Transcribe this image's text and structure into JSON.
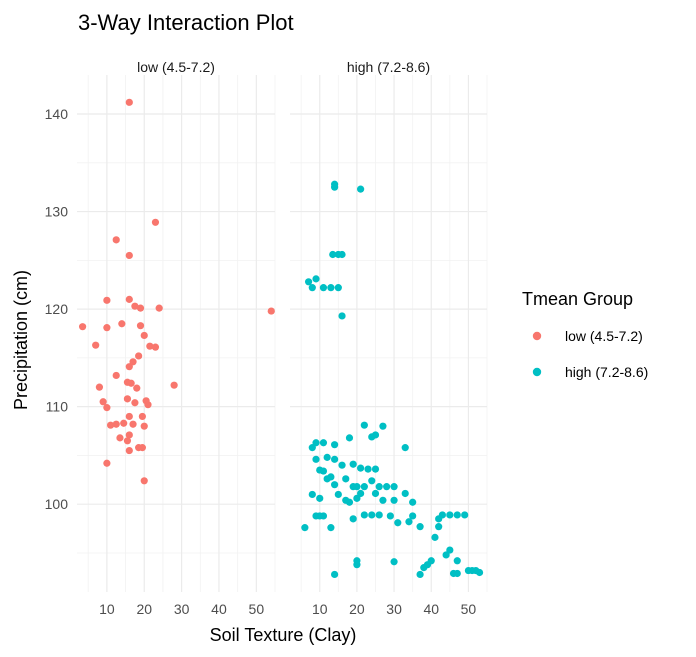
{
  "chart_data": {
    "type": "scatter",
    "title": "3-Way Interaction Plot",
    "xlabel": "Soil Texture (Clay)",
    "ylabel": "Precipitation (cm)",
    "xlim": [
      2,
      55
    ],
    "ylim": [
      91,
      144
    ],
    "x_ticks": [
      10,
      20,
      30,
      40,
      50
    ],
    "y_ticks": [
      100,
      110,
      120,
      130,
      140
    ],
    "grid": true,
    "legend": {
      "title": "Tmean Group",
      "placement": "right",
      "entries": [
        {
          "label": "low (4.5-7.2)",
          "color": "#F8766D"
        },
        {
          "label": "high (7.2-8.6)",
          "color": "#00BFC4"
        }
      ]
    },
    "panels": [
      {
        "strip": "low (4.5-7.2)",
        "color": "#F8766D",
        "points": [
          [
            16,
            141.2
          ],
          [
            23,
            128.9
          ],
          [
            12.5,
            127.1
          ],
          [
            16,
            125.5
          ],
          [
            16,
            121
          ],
          [
            10,
            120.9
          ],
          [
            17.5,
            120.3
          ],
          [
            19,
            120.1
          ],
          [
            24,
            120.1
          ],
          [
            3.5,
            118.2
          ],
          [
            10,
            118.1
          ],
          [
            14,
            118.5
          ],
          [
            19,
            118.3
          ],
          [
            20,
            117.3
          ],
          [
            21.5,
            116.2
          ],
          [
            23,
            116.1
          ],
          [
            7,
            116.3
          ],
          [
            18.5,
            115.2
          ],
          [
            17,
            114.6
          ],
          [
            16,
            114.1
          ],
          [
            12.5,
            113.2
          ],
          [
            15.5,
            112.5
          ],
          [
            16.5,
            112.4
          ],
          [
            18,
            111.9
          ],
          [
            20.5,
            110.6
          ],
          [
            10,
            109.9
          ],
          [
            15.5,
            110.8
          ],
          [
            17.5,
            110.4
          ],
          [
            21,
            110.2
          ],
          [
            19.5,
            109
          ],
          [
            16,
            109
          ],
          [
            8,
            112
          ],
          [
            9,
            110.5
          ],
          [
            11,
            108.1
          ],
          [
            12.5,
            108.2
          ],
          [
            14.5,
            108.3
          ],
          [
            17,
            108.2
          ],
          [
            20,
            108
          ],
          [
            16,
            107.1
          ],
          [
            13.5,
            106.8
          ],
          [
            15.5,
            106.5
          ],
          [
            18.5,
            105.8
          ],
          [
            19.5,
            105.8
          ],
          [
            16,
            105.5
          ],
          [
            10,
            104.2
          ],
          [
            28,
            112.2
          ],
          [
            20,
            102.4
          ],
          [
            54,
            119.8
          ]
        ]
      },
      {
        "strip": "high (7.2-8.6)",
        "color": "#00BFC4",
        "points": [
          [
            14,
            132.8
          ],
          [
            14,
            132.5
          ],
          [
            21,
            132.3
          ],
          [
            13.5,
            125.6
          ],
          [
            15,
            125.6
          ],
          [
            16,
            125.6
          ],
          [
            7,
            122.8
          ],
          [
            9,
            123.1
          ],
          [
            8,
            122.2
          ],
          [
            11,
            122.2
          ],
          [
            13,
            122.2
          ],
          [
            15,
            122.2
          ],
          [
            16,
            119.3
          ],
          [
            9,
            106.3
          ],
          [
            8,
            105.8
          ],
          [
            11,
            106.3
          ],
          [
            14,
            106.1
          ],
          [
            18,
            106.8
          ],
          [
            22,
            108.1
          ],
          [
            24,
            106.9
          ],
          [
            25,
            107.1
          ],
          [
            27,
            108
          ],
          [
            33,
            105.8
          ],
          [
            9,
            104.6
          ],
          [
            12,
            104.8
          ],
          [
            14,
            104.6
          ],
          [
            16,
            104
          ],
          [
            19,
            104.1
          ],
          [
            21,
            103.7
          ],
          [
            23,
            103.6
          ],
          [
            25,
            103.6
          ],
          [
            10,
            103.5
          ],
          [
            11,
            103.4
          ],
          [
            12,
            102.6
          ],
          [
            13,
            102.8
          ],
          [
            14,
            102
          ],
          [
            17,
            102.6
          ],
          [
            19,
            101.8
          ],
          [
            20,
            101.8
          ],
          [
            22,
            101.8
          ],
          [
            24,
            102.4
          ],
          [
            26,
            101.8
          ],
          [
            28,
            101.8
          ],
          [
            30,
            101.8
          ],
          [
            8,
            101
          ],
          [
            10,
            100.6
          ],
          [
            15,
            101
          ],
          [
            17,
            100.4
          ],
          [
            18,
            100.2
          ],
          [
            20,
            100.6
          ],
          [
            21,
            101.1
          ],
          [
            24,
            98.9
          ],
          [
            25,
            101.1
          ],
          [
            27,
            100.4
          ],
          [
            30,
            100.4
          ],
          [
            33,
            101.1
          ],
          [
            35,
            100.2
          ],
          [
            11,
            98.8
          ],
          [
            13,
            97.6
          ],
          [
            19,
            98.5
          ],
          [
            22,
            98.9
          ],
          [
            26,
            98.9
          ],
          [
            29,
            98.8
          ],
          [
            31,
            98.1
          ],
          [
            34,
            98.2
          ],
          [
            35,
            98.8
          ],
          [
            37,
            97.7
          ],
          [
            6,
            97.6
          ],
          [
            9,
            98.8
          ],
          [
            10,
            98.8
          ],
          [
            42,
            98.5
          ],
          [
            43,
            98.9
          ],
          [
            45,
            98.9
          ],
          [
            47,
            98.9
          ],
          [
            49,
            98.9
          ],
          [
            42,
            97.7
          ],
          [
            41,
            96.6
          ],
          [
            30,
            94.1
          ],
          [
            20,
            94.2
          ],
          [
            20,
            93.8
          ],
          [
            14,
            92.8
          ],
          [
            37,
            92.8
          ],
          [
            38,
            93.5
          ],
          [
            39,
            93.8
          ],
          [
            40,
            94.2
          ],
          [
            44,
            94.8
          ],
          [
            45,
            95.3
          ],
          [
            47,
            94.2
          ],
          [
            46,
            92.9
          ],
          [
            47,
            92.9
          ],
          [
            50,
            93.2
          ],
          [
            51,
            93.2
          ],
          [
            52,
            93.2
          ],
          [
            53,
            93
          ]
        ]
      }
    ]
  }
}
